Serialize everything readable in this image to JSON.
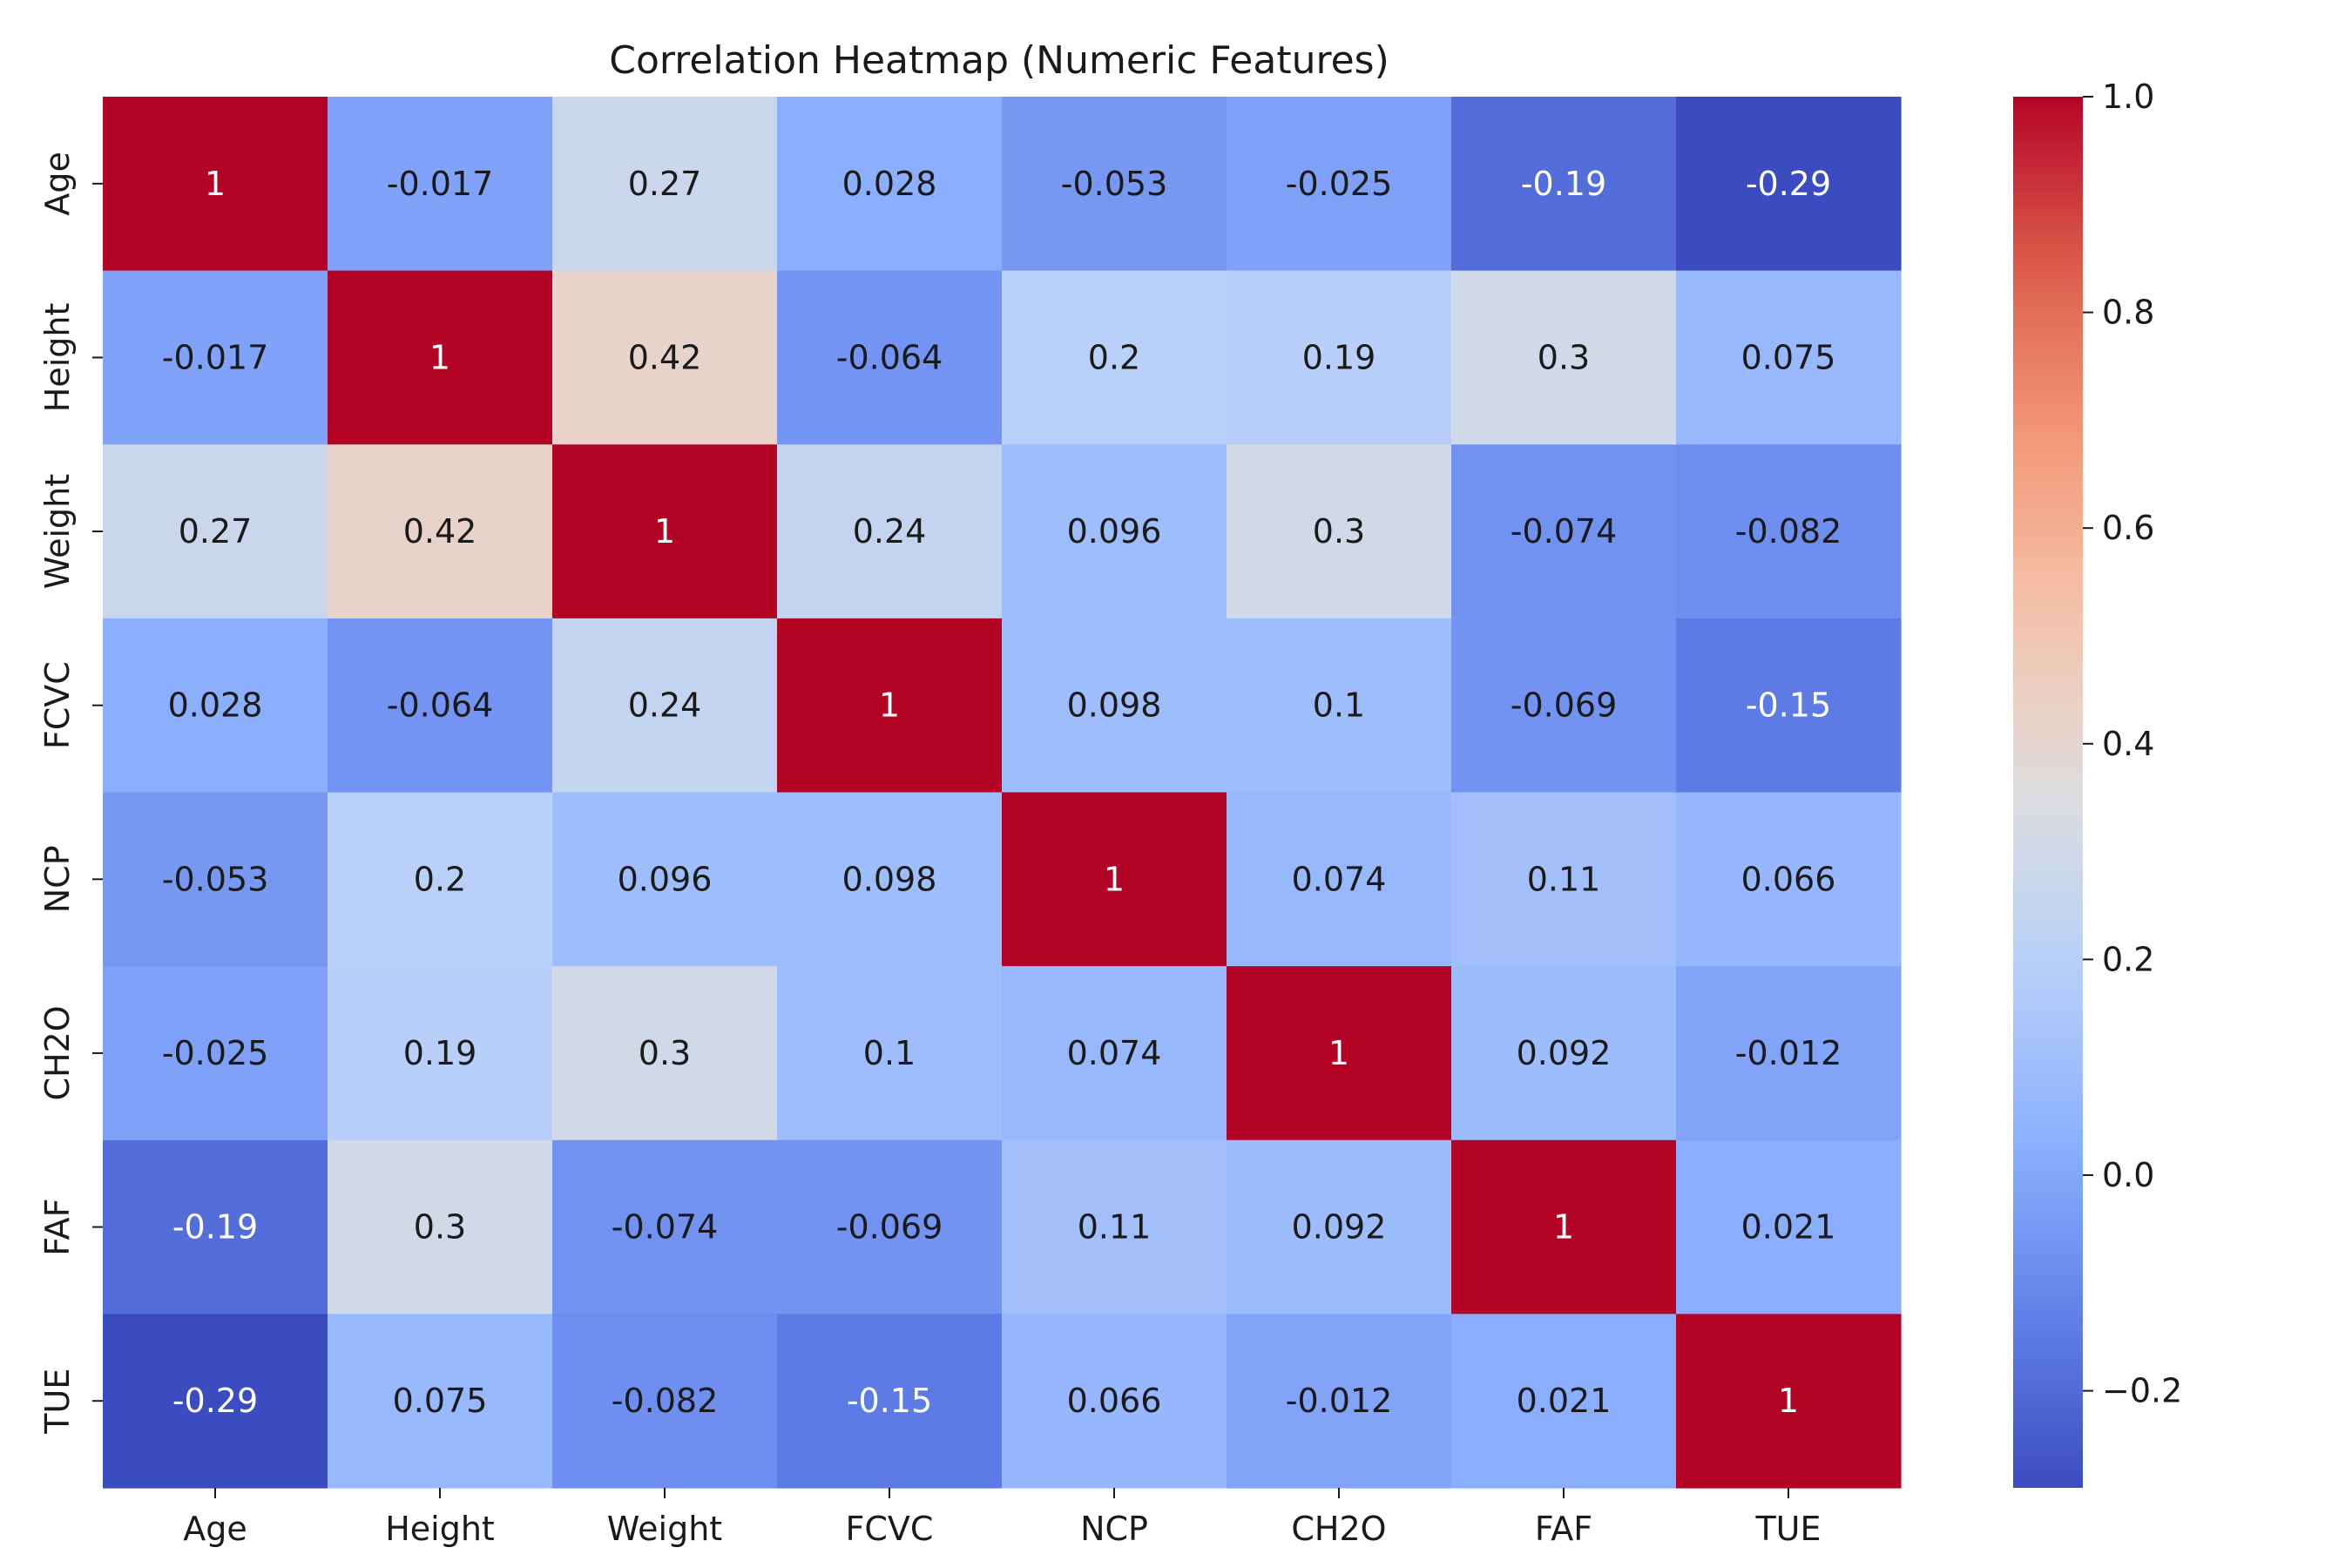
{
  "chart_data": {
    "type": "heatmap",
    "title": "Correlation Heatmap (Numeric Features)",
    "xlabel": "",
    "ylabel": "",
    "x_categories": [
      "Age",
      "Height",
      "Weight",
      "FCVC",
      "NCP",
      "CH2O",
      "FAF",
      "TUE"
    ],
    "y_categories": [
      "Age",
      "Height",
      "Weight",
      "FCVC",
      "NCP",
      "CH2O",
      "FAF",
      "TUE"
    ],
    "values": [
      [
        1,
        -0.017,
        0.27,
        0.028,
        -0.053,
        -0.025,
        -0.19,
        -0.29
      ],
      [
        -0.017,
        1,
        0.42,
        -0.064,
        0.2,
        0.19,
        0.3,
        0.075
      ],
      [
        0.27,
        0.42,
        1,
        0.24,
        0.096,
        0.3,
        -0.074,
        -0.082
      ],
      [
        0.028,
        -0.064,
        0.24,
        1,
        0.098,
        0.1,
        -0.069,
        -0.15
      ],
      [
        -0.053,
        0.2,
        0.096,
        0.098,
        1,
        0.074,
        0.11,
        0.066
      ],
      [
        -0.025,
        0.19,
        0.3,
        0.1,
        0.074,
        1,
        0.092,
        -0.012
      ],
      [
        -0.19,
        0.3,
        -0.074,
        -0.069,
        0.11,
        0.092,
        1,
        0.021
      ],
      [
        -0.29,
        0.075,
        -0.082,
        -0.15,
        0.066,
        -0.012,
        0.021,
        1
      ]
    ],
    "cell_labels": [
      [
        "1",
        "-0.017",
        "0.27",
        "0.028",
        "-0.053",
        "-0.025",
        "-0.19",
        "-0.29"
      ],
      [
        "-0.017",
        "1",
        "0.42",
        "-0.064",
        "0.2",
        "0.19",
        "0.3",
        "0.075"
      ],
      [
        "0.27",
        "0.42",
        "1",
        "0.24",
        "0.096",
        "0.3",
        "-0.074",
        "-0.082"
      ],
      [
        "0.028",
        "-0.064",
        "0.24",
        "1",
        "0.098",
        "0.1",
        "-0.069",
        "-0.15"
      ],
      [
        "-0.053",
        "0.2",
        "0.096",
        "0.098",
        "1",
        "0.074",
        "0.11",
        "0.066"
      ],
      [
        "-0.025",
        "0.19",
        "0.3",
        "0.1",
        "0.074",
        "1",
        "0.092",
        "-0.012"
      ],
      [
        "-0.19",
        "0.3",
        "-0.074",
        "-0.069",
        "0.11",
        "0.092",
        "1",
        "0.021"
      ],
      [
        "-0.29",
        "0.075",
        "-0.082",
        "-0.15",
        "0.066",
        "-0.012",
        "0.021",
        "1"
      ]
    ],
    "colormap": "coolwarm",
    "value_range": [
      -0.29,
      1.0
    ],
    "colorbar": {
      "ticks": [
        1.0,
        0.8,
        0.6,
        0.4,
        0.2,
        0.0,
        -0.2
      ],
      "tick_labels": [
        "1.0",
        "0.8",
        "0.6",
        "0.4",
        "0.2",
        "0.0",
        "−0.2"
      ],
      "placement": "right"
    },
    "grid": false,
    "colors": {
      "label_dark": "#1a1a1a",
      "label_light": "#ffffff",
      "background": "#ffffff"
    }
  }
}
